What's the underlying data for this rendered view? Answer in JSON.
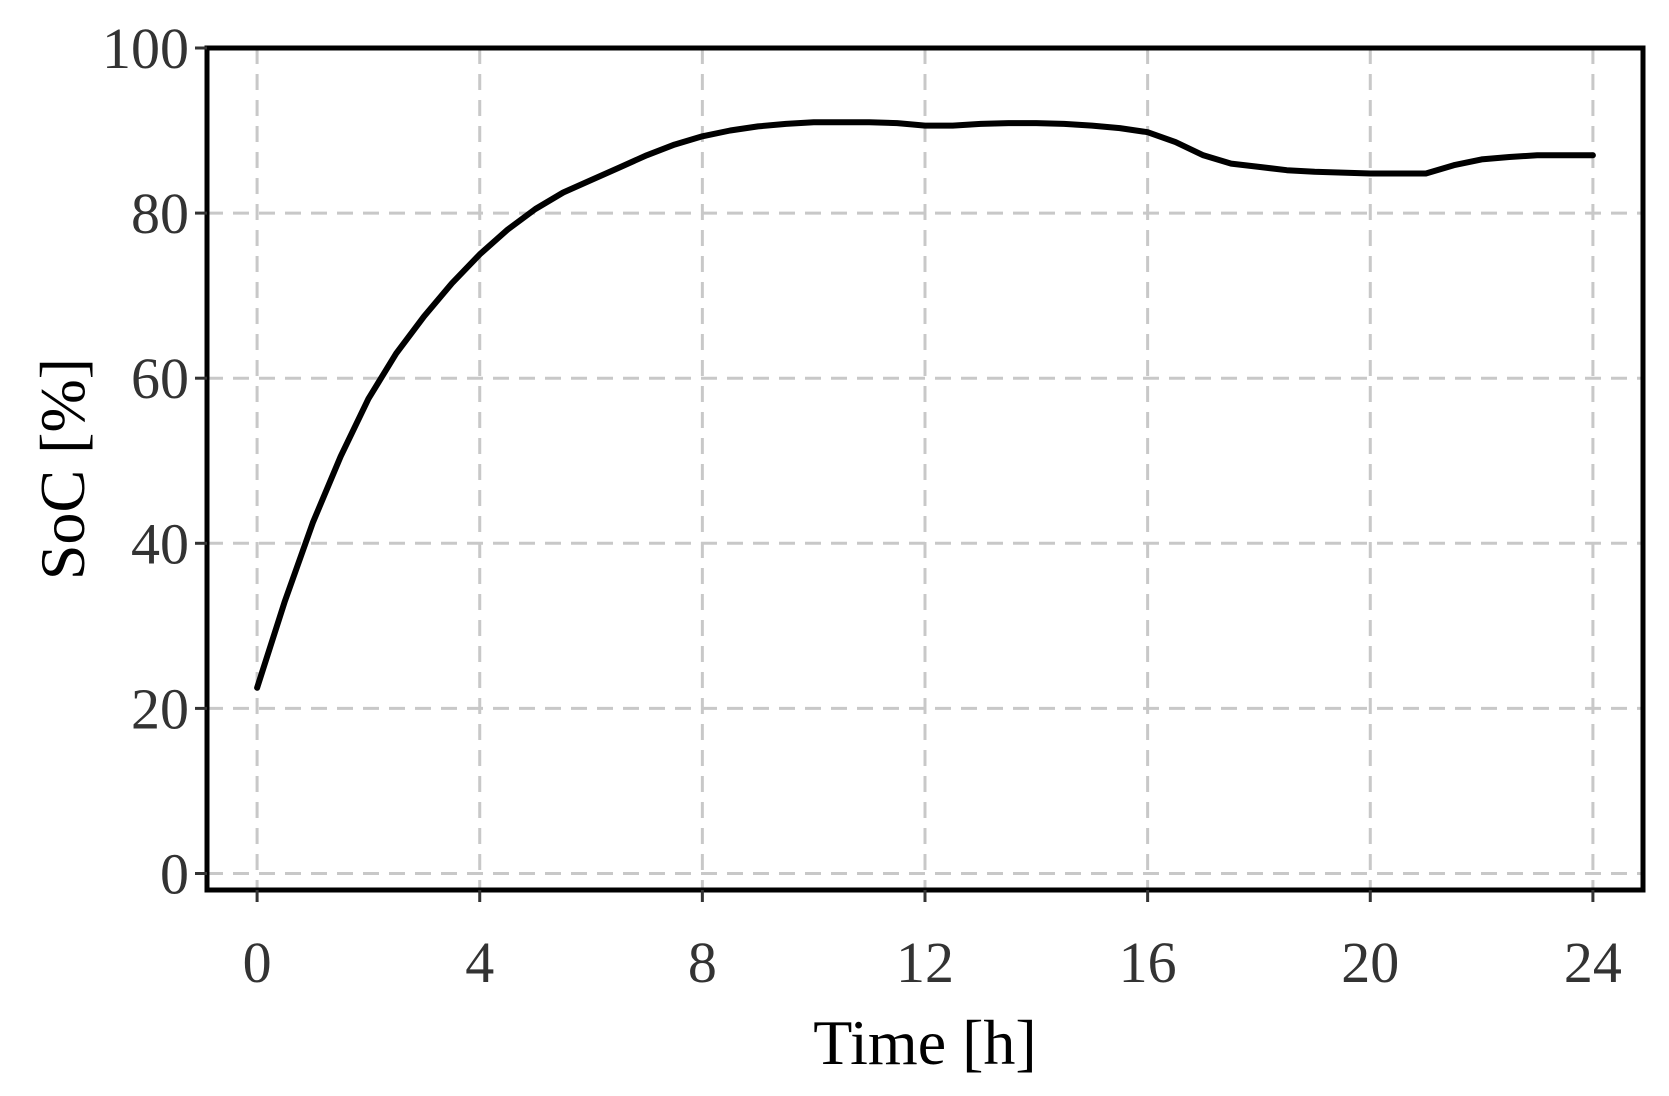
{
  "chart_data": {
    "type": "line",
    "title": "",
    "xlabel": "Time [h]",
    "ylabel": "SoC [%]",
    "xlim": [
      -0.9,
      24.9
    ],
    "ylim": [
      -2,
      100
    ],
    "xticks": [
      0,
      4,
      8,
      12,
      16,
      20,
      24
    ],
    "yticks": [
      0,
      20,
      40,
      60,
      80,
      100
    ],
    "grid": true,
    "colors": {
      "line": "#000000",
      "grid": "#c8c8c8",
      "frame": "#000000",
      "tick_text": "#333333"
    },
    "series": [
      {
        "x": [
          0,
          0.5,
          1,
          1.5,
          2,
          2.5,
          3,
          3.5,
          4,
          4.5,
          5,
          5.5,
          6,
          6.5,
          7,
          7.5,
          8,
          8.5,
          9,
          9.5,
          10,
          10.5,
          11,
          11.5,
          12,
          12.5,
          13,
          13.5,
          14,
          14.5,
          15,
          15.5,
          16,
          16.5,
          17,
          17.5,
          18,
          18.5,
          19,
          19.5,
          20,
          20.5,
          21,
          21.5,
          22,
          22.5,
          23,
          23.5,
          24
        ],
        "y": [
          22.5,
          33,
          42.5,
          50.5,
          57.5,
          63,
          67.5,
          71.5,
          75,
          78,
          80.5,
          82.5,
          84,
          85.5,
          87,
          88.3,
          89.3,
          90,
          90.5,
          90.8,
          91,
          91,
          91,
          90.9,
          90.6,
          90.6,
          90.8,
          90.9,
          90.9,
          90.8,
          90.6,
          90.3,
          89.8,
          88.6,
          87,
          86,
          85.6,
          85.2,
          85,
          84.9,
          84.8,
          84.8,
          84.8,
          85.8,
          86.5,
          86.8,
          87,
          87,
          87
        ]
      }
    ]
  }
}
